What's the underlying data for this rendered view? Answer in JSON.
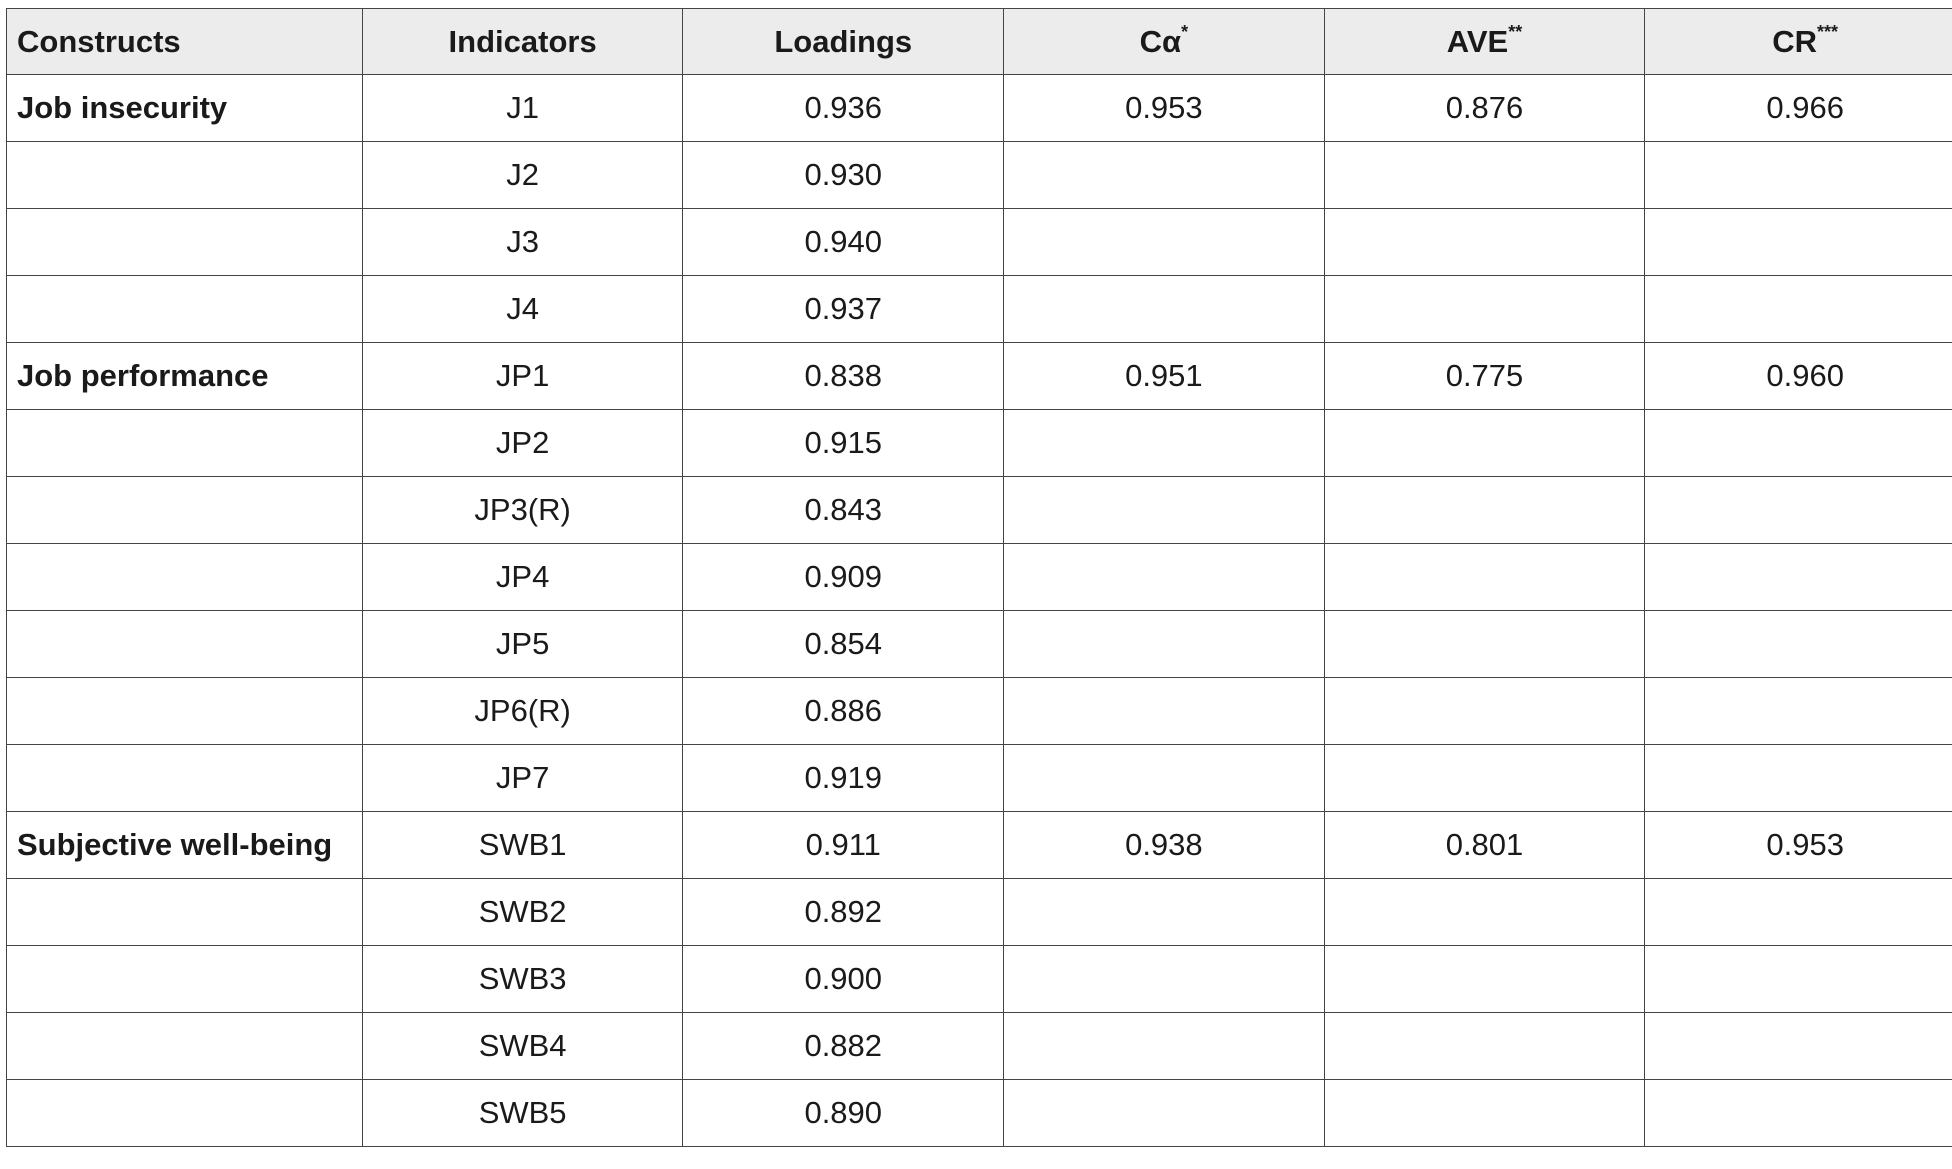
{
  "table": {
    "headers": [
      {
        "label": "Constructs",
        "sup": ""
      },
      {
        "label": "Indicators",
        "sup": ""
      },
      {
        "label": "Loadings",
        "sup": ""
      },
      {
        "label": "Cα",
        "sup": "*"
      },
      {
        "label": "AVE",
        "sup": "**"
      },
      {
        "label": "CR",
        "sup": "***"
      }
    ],
    "rows": [
      [
        "Job insecurity",
        "J1",
        "0.936",
        "0.953",
        "0.876",
        "0.966"
      ],
      [
        "",
        "J2",
        "0.930",
        "",
        "",
        ""
      ],
      [
        "",
        "J3",
        "0.940",
        "",
        "",
        ""
      ],
      [
        "",
        "J4",
        "0.937",
        "",
        "",
        ""
      ],
      [
        "Job performance",
        "JP1",
        "0.838",
        "0.951",
        "0.775",
        "0.960"
      ],
      [
        "",
        "JP2",
        "0.915",
        "",
        "",
        ""
      ],
      [
        "",
        "JP3(R)",
        "0.843",
        "",
        "",
        ""
      ],
      [
        "",
        "JP4",
        "0.909",
        "",
        "",
        ""
      ],
      [
        "",
        "JP5",
        "0.854",
        "",
        "",
        ""
      ],
      [
        "",
        "JP6(R)",
        "0.886",
        "",
        "",
        ""
      ],
      [
        "",
        "JP7",
        "0.919",
        "",
        "",
        ""
      ],
      [
        "Subjective well-being",
        "SWB1",
        "0.911",
        "0.938",
        "0.801",
        "0.953"
      ],
      [
        "",
        "SWB2",
        "0.892",
        "",
        "",
        ""
      ],
      [
        "",
        "SWB3",
        "0.900",
        "",
        "",
        ""
      ],
      [
        "",
        "SWB4",
        "0.882",
        "",
        "",
        ""
      ],
      [
        "",
        "SWB5",
        "0.890",
        "",
        "",
        ""
      ]
    ]
  }
}
